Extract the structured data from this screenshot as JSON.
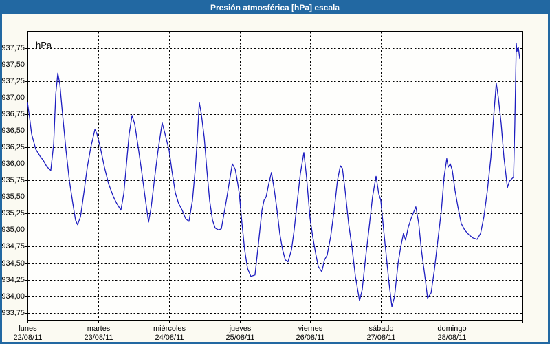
{
  "window": {
    "title": "Presión atmosférica [hPa] escala"
  },
  "colors": {
    "title_bar": "#2268a2",
    "title_text": "#ffffff",
    "outer_background": "#fbfaf2",
    "plot_background": "#fefefc",
    "grid": "#000000",
    "frame": "#000000",
    "line": "#1d1dc0",
    "label_text": "#000000"
  },
  "chart_data": {
    "type": "line",
    "title": "Presión atmosférica [hPa] escala",
    "y_unit_label": "hPa",
    "xlabel": "",
    "ylabel": "hPa",
    "grid": "dashed",
    "legend": "none",
    "ylim": [
      933.643,
      938.007
    ],
    "xlim_hours": [
      0,
      168
    ],
    "day_width_hours": 24,
    "yticks": [
      {
        "value": 937.75,
        "label": "937,75"
      },
      {
        "value": 937.5,
        "label": "937,50"
      },
      {
        "value": 937.25,
        "label": "937,25"
      },
      {
        "value": 937.0,
        "label": "937,00"
      },
      {
        "value": 936.75,
        "label": "936,75"
      },
      {
        "value": 936.5,
        "label": "936,50"
      },
      {
        "value": 936.25,
        "label": "936,25"
      },
      {
        "value": 936.0,
        "label": "936,00"
      },
      {
        "value": 935.75,
        "label": "935,75"
      },
      {
        "value": 935.5,
        "label": "935,50"
      },
      {
        "value": 935.25,
        "label": "935,25"
      },
      {
        "value": 935.0,
        "label": "935,00"
      },
      {
        "value": 934.75,
        "label": "934,75"
      },
      {
        "value": 934.5,
        "label": "934,50"
      },
      {
        "value": 934.25,
        "label": "934,25"
      },
      {
        "value": 934.0,
        "label": "934,00"
      },
      {
        "value": 933.75,
        "label": "933,75"
      }
    ],
    "days": [
      {
        "name": "lunes",
        "date": "22/08/11",
        "start_hour": 0
      },
      {
        "name": "martes",
        "date": "23/08/11",
        "start_hour": 24
      },
      {
        "name": "miércoles",
        "date": "24/08/11",
        "start_hour": 48
      },
      {
        "name": "jueves",
        "date": "25/08/11",
        "start_hour": 72
      },
      {
        "name": "viernes",
        "date": "26/08/11",
        "start_hour": 96
      },
      {
        "name": "sábado",
        "date": "27/08/11",
        "start_hour": 120
      },
      {
        "name": "domingo",
        "date": "28/08/11",
        "start_hour": 144
      }
    ],
    "series": [
      {
        "name": "Presión atmosférica",
        "unit": "hPa",
        "points": [
          [
            0,
            936.93
          ],
          [
            0.7,
            936.7
          ],
          [
            1.4,
            936.45
          ],
          [
            2.8,
            936.22
          ],
          [
            4.2,
            936.12
          ],
          [
            5.4,
            936.05
          ],
          [
            6.5,
            935.96
          ],
          [
            7.9,
            935.9
          ],
          [
            8.9,
            936.3
          ],
          [
            9.6,
            937.05
          ],
          [
            10.3,
            937.37
          ],
          [
            11,
            937.2
          ],
          [
            11.9,
            936.75
          ],
          [
            13.1,
            936.2
          ],
          [
            14.2,
            935.75
          ],
          [
            15.4,
            935.4
          ],
          [
            16.3,
            935.15
          ],
          [
            17,
            935.08
          ],
          [
            18,
            935.2
          ],
          [
            19.1,
            935.55
          ],
          [
            20.3,
            935.95
          ],
          [
            21.5,
            936.25
          ],
          [
            22.9,
            936.52
          ],
          [
            23.6,
            936.45
          ],
          [
            24.7,
            936.25
          ],
          [
            26.1,
            935.95
          ],
          [
            27.5,
            935.7
          ],
          [
            29.2,
            935.5
          ],
          [
            30.3,
            935.4
          ],
          [
            31.7,
            935.3
          ],
          [
            32.7,
            935.55
          ],
          [
            33.6,
            936.0
          ],
          [
            34.5,
            936.45
          ],
          [
            35.5,
            936.73
          ],
          [
            36.4,
            936.6
          ],
          [
            37.6,
            936.25
          ],
          [
            38.7,
            935.9
          ],
          [
            39.9,
            935.5
          ],
          [
            41.1,
            935.12
          ],
          [
            42,
            935.35
          ],
          [
            43.2,
            935.8
          ],
          [
            44.3,
            936.2
          ],
          [
            45.7,
            936.62
          ],
          [
            46.7,
            936.45
          ],
          [
            48.1,
            936.2
          ],
          [
            49,
            935.9
          ],
          [
            50.2,
            935.56
          ],
          [
            51.3,
            935.4
          ],
          [
            52.5,
            935.3
          ],
          [
            53.7,
            935.17
          ],
          [
            54.8,
            935.13
          ],
          [
            56,
            935.45
          ],
          [
            56.9,
            935.9
          ],
          [
            57.6,
            936.35
          ],
          [
            58.3,
            936.93
          ],
          [
            59,
            936.75
          ],
          [
            60,
            936.4
          ],
          [
            60.9,
            935.9
          ],
          [
            61.8,
            935.45
          ],
          [
            62.8,
            935.15
          ],
          [
            63.7,
            935.03
          ],
          [
            64.9,
            935.0
          ],
          [
            65.8,
            935.02
          ],
          [
            66.7,
            935.25
          ],
          [
            67.7,
            935.5
          ],
          [
            68.6,
            935.75
          ],
          [
            69.5,
            936.0
          ],
          [
            70.5,
            935.92
          ],
          [
            71.2,
            935.75
          ],
          [
            71.9,
            935.55
          ],
          [
            72.8,
            935.1
          ],
          [
            73.7,
            934.7
          ],
          [
            74.7,
            934.42
          ],
          [
            75.8,
            934.3
          ],
          [
            77.2,
            934.32
          ],
          [
            78.4,
            934.8
          ],
          [
            79.6,
            935.3
          ],
          [
            80.3,
            935.45
          ],
          [
            81,
            935.5
          ],
          [
            81.9,
            935.7
          ],
          [
            82.8,
            935.87
          ],
          [
            83.8,
            935.6
          ],
          [
            84.7,
            935.3
          ],
          [
            85.6,
            934.95
          ],
          [
            86.6,
            934.7
          ],
          [
            87.5,
            934.55
          ],
          [
            88.4,
            934.52
          ],
          [
            89.6,
            934.7
          ],
          [
            90.5,
            935.0
          ],
          [
            91.5,
            935.4
          ],
          [
            92.6,
            935.85
          ],
          [
            93.8,
            936.17
          ],
          [
            94.7,
            935.8
          ],
          [
            95.9,
            935.18
          ],
          [
            96.8,
            934.9
          ],
          [
            97.8,
            934.65
          ],
          [
            98.7,
            934.45
          ],
          [
            99.9,
            934.37
          ],
          [
            100.8,
            934.55
          ],
          [
            101.7,
            934.62
          ],
          [
            102.9,
            934.9
          ],
          [
            104.1,
            935.3
          ],
          [
            105.2,
            935.75
          ],
          [
            106.2,
            935.97
          ],
          [
            106.9,
            935.93
          ],
          [
            107.8,
            935.6
          ],
          [
            109,
            935.1
          ],
          [
            110.1,
            934.75
          ],
          [
            111.3,
            934.3
          ],
          [
            112.7,
            933.93
          ],
          [
            113.6,
            934.1
          ],
          [
            114.8,
            934.6
          ],
          [
            116,
            935.05
          ],
          [
            117.1,
            935.5
          ],
          [
            118.3,
            935.81
          ],
          [
            119.2,
            935.55
          ],
          [
            119.9,
            935.45
          ],
          [
            120.9,
            935.0
          ],
          [
            121.8,
            934.6
          ],
          [
            122.7,
            934.2
          ],
          [
            123.7,
            933.84
          ],
          [
            124.6,
            934.0
          ],
          [
            125.8,
            934.5
          ],
          [
            126.7,
            934.75
          ],
          [
            127.6,
            934.95
          ],
          [
            128.3,
            934.85
          ],
          [
            129.3,
            935.05
          ],
          [
            130.4,
            935.2
          ],
          [
            131.8,
            935.35
          ],
          [
            132.8,
            935.1
          ],
          [
            133.7,
            934.7
          ],
          [
            134.9,
            934.3
          ],
          [
            135.8,
            933.97
          ],
          [
            137,
            934.05
          ],
          [
            138.1,
            934.4
          ],
          [
            139.3,
            934.85
          ],
          [
            140.5,
            935.3
          ],
          [
            141.4,
            935.8
          ],
          [
            142.3,
            936.08
          ],
          [
            142.8,
            935.95
          ],
          [
            143.5,
            936.0
          ],
          [
            144.2,
            935.9
          ],
          [
            145.1,
            935.6
          ],
          [
            146.1,
            935.35
          ],
          [
            147.2,
            935.1
          ],
          [
            148.4,
            935.0
          ],
          [
            149.8,
            934.93
          ],
          [
            151.2,
            934.88
          ],
          [
            152.6,
            934.86
          ],
          [
            153.8,
            934.95
          ],
          [
            154.9,
            935.2
          ],
          [
            156.1,
            935.6
          ],
          [
            157.3,
            936.1
          ],
          [
            158.2,
            936.7
          ],
          [
            159.1,
            937.22
          ],
          [
            159.8,
            937.0
          ],
          [
            160.8,
            936.6
          ],
          [
            161.7,
            936.1
          ],
          [
            162.9,
            935.64
          ],
          [
            163.6,
            935.74
          ],
          [
            164.3,
            935.77
          ],
          [
            165,
            935.8
          ],
          [
            165.4,
            936.6
          ],
          [
            165.9,
            937.82
          ],
          [
            166.1,
            937.7
          ],
          [
            166.6,
            937.76
          ],
          [
            167.1,
            937.58
          ]
        ]
      }
    ]
  }
}
